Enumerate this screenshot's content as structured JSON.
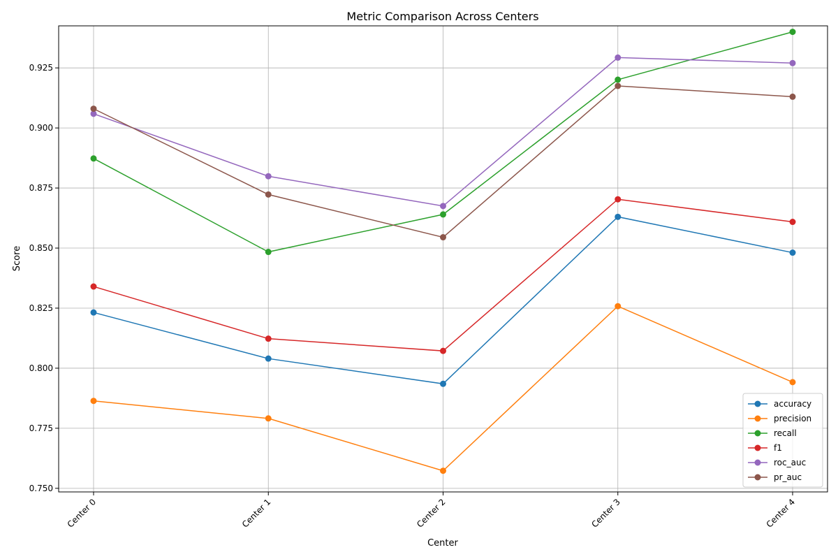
{
  "chart_data": {
    "type": "line",
    "title": "Metric Comparison Across Centers",
    "xlabel": "Center",
    "ylabel": "Score",
    "categories": [
      "Center 0",
      "Center 1",
      "Center 2",
      "Center 3",
      "Center 4"
    ],
    "ylim": [
      0.7485,
      0.9425
    ],
    "yticks": [
      0.75,
      0.775,
      0.8,
      0.825,
      0.85,
      0.875,
      0.9,
      0.925
    ],
    "ytick_labels": [
      "0.750",
      "0.775",
      "0.800",
      "0.825",
      "0.850",
      "0.875",
      "0.900",
      "0.925"
    ],
    "grid": true,
    "legend_position": "bottom-right",
    "series": [
      {
        "name": "accuracy",
        "color": "#1f77b4",
        "values": [
          0.8232,
          0.804,
          0.7935,
          0.863,
          0.8481
        ]
      },
      {
        "name": "precision",
        "color": "#ff7f0e",
        "values": [
          0.7864,
          0.7791,
          0.7573,
          0.8258,
          0.7942
        ]
      },
      {
        "name": "recall",
        "color": "#2ca02c",
        "values": [
          0.8873,
          0.8484,
          0.864,
          0.9201,
          0.94
        ]
      },
      {
        "name": "f1",
        "color": "#d62728",
        "values": [
          0.834,
          0.8123,
          0.8072,
          0.8703,
          0.8609
        ]
      },
      {
        "name": "roc_auc",
        "color": "#9467bd",
        "values": [
          0.9059,
          0.8799,
          0.8675,
          0.9293,
          0.927
        ]
      },
      {
        "name": "pr_auc",
        "color": "#8c564b",
        "values": [
          0.908,
          0.8723,
          0.8545,
          0.9175,
          0.913
        ]
      }
    ]
  }
}
